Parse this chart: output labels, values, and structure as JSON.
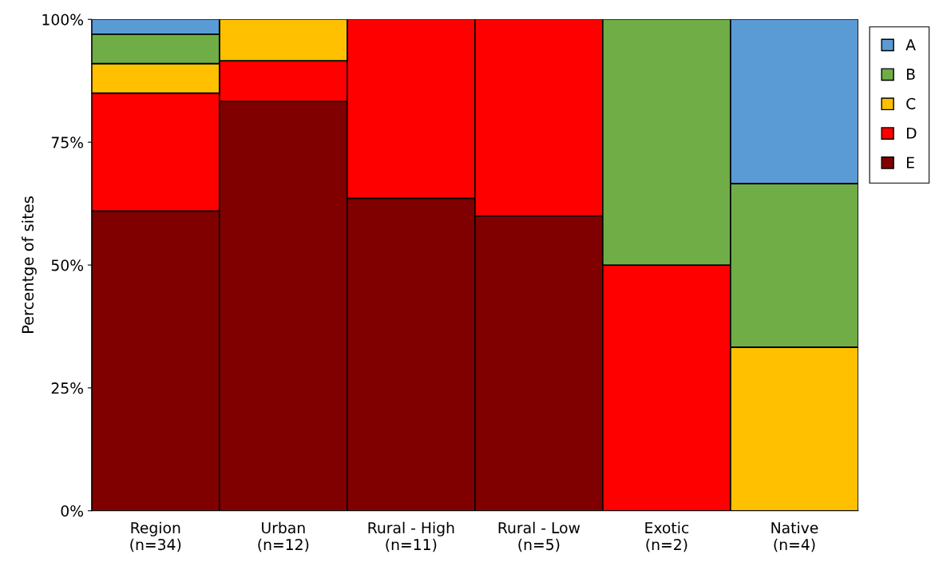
{
  "chart_data": {
    "type": "bar",
    "stacked": true,
    "ylabel": "Percentge of sites",
    "categories": [
      "Region\n(n=34)",
      "Urban\n(n=12)",
      "Rural - High\n(n=11)",
      "Rural - Low\n(n=5)",
      "Exotic\n(n=2)",
      "Native\n(n=4)"
    ],
    "series": [
      {
        "name": "E",
        "color": "#800000",
        "values": [
          61,
          83.3,
          63.6,
          60,
          null,
          null
        ]
      },
      {
        "name": "D",
        "color": "#ff0000",
        "values": [
          24,
          8.3,
          36.4,
          40,
          50,
          null
        ]
      },
      {
        "name": "C",
        "color": "#ffc000",
        "values": [
          6,
          8.4,
          null,
          null,
          null,
          33.3
        ]
      },
      {
        "name": "B",
        "color": "#70ad47",
        "values": [
          6,
          null,
          null,
          null,
          50,
          33.3
        ]
      },
      {
        "name": "A",
        "color": "#5b9bd5",
        "values": [
          3,
          null,
          null,
          null,
          null,
          33.4
        ]
      }
    ],
    "ylim": [
      0,
      100
    ],
    "yticks": [
      {
        "value": 0,
        "label": "0%"
      },
      {
        "value": 25,
        "label": "25%"
      },
      {
        "value": 50,
        "label": "50%"
      },
      {
        "value": 75,
        "label": "75%"
      },
      {
        "value": 100,
        "label": "100%"
      }
    ],
    "grid": false,
    "legend": "top right"
  }
}
